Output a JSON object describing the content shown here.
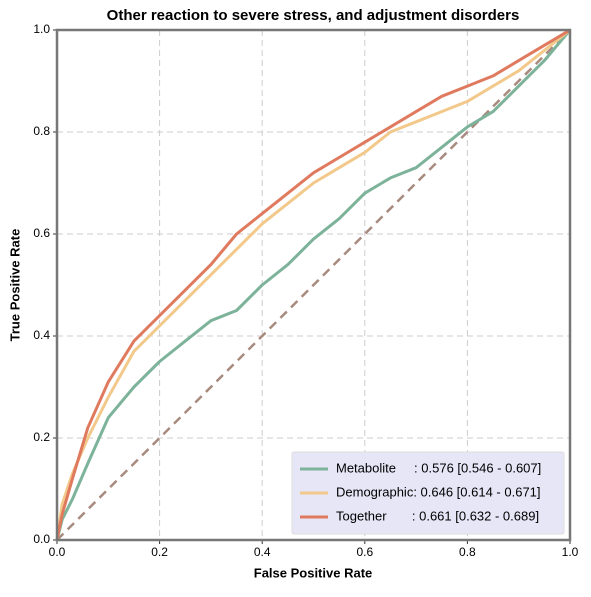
{
  "chart_data": {
    "type": "line",
    "title": "Other reaction to severe stress, and adjustment disorders",
    "xlabel": "False Positive Rate",
    "ylabel": "True Positive Rate",
    "x": [
      0,
      0.01,
      0.03,
      0.06,
      0.1,
      0.15,
      0.2,
      0.25,
      0.3,
      0.35,
      0.4,
      0.45,
      0.5,
      0.55,
      0.6,
      0.65,
      0.7,
      0.75,
      0.8,
      0.85,
      0.9,
      0.95,
      1
    ],
    "series": [
      {
        "name": "Metabolite     : 0.576 [0.546 - 0.607]",
        "color": "#7db39a",
        "values": [
          0,
          0.04,
          0.08,
          0.15,
          0.24,
          0.3,
          0.35,
          0.39,
          0.43,
          0.45,
          0.5,
          0.54,
          0.59,
          0.63,
          0.68,
          0.71,
          0.73,
          0.77,
          0.81,
          0.84,
          0.89,
          0.94,
          1
        ]
      },
      {
        "name": "Demographic: 0.646 [0.614 - 0.671]",
        "color": "#f2c98b",
        "values": [
          0,
          0.07,
          0.13,
          0.2,
          0.28,
          0.37,
          0.42,
          0.47,
          0.52,
          0.57,
          0.62,
          0.66,
          0.7,
          0.73,
          0.76,
          0.8,
          0.82,
          0.84,
          0.86,
          0.89,
          0.92,
          0.96,
          1
        ]
      },
      {
        "name": "Together       : 0.661 [0.632 - 0.689]",
        "color": "#e07a5f",
        "values": [
          0,
          0.05,
          0.12,
          0.22,
          0.31,
          0.39,
          0.44,
          0.49,
          0.54,
          0.6,
          0.64,
          0.68,
          0.72,
          0.75,
          0.78,
          0.81,
          0.84,
          0.87,
          0.89,
          0.91,
          0.94,
          0.97,
          1
        ]
      }
    ],
    "xlim": [
      0,
      1
    ],
    "ylim": [
      0,
      1
    ],
    "xticks": [
      {
        "value": 0,
        "label": "0.0"
      },
      0.2,
      0.4,
      0.6,
      0.8,
      {
        "value": 1,
        "label": "1.0"
      }
    ],
    "yticks": [
      {
        "value": 0,
        "label": "0.0"
      },
      0.2,
      0.4,
      0.6,
      0.8,
      {
        "value": 1,
        "label": "1.0"
      }
    ],
    "grid": true,
    "legend": "lower right"
  }
}
